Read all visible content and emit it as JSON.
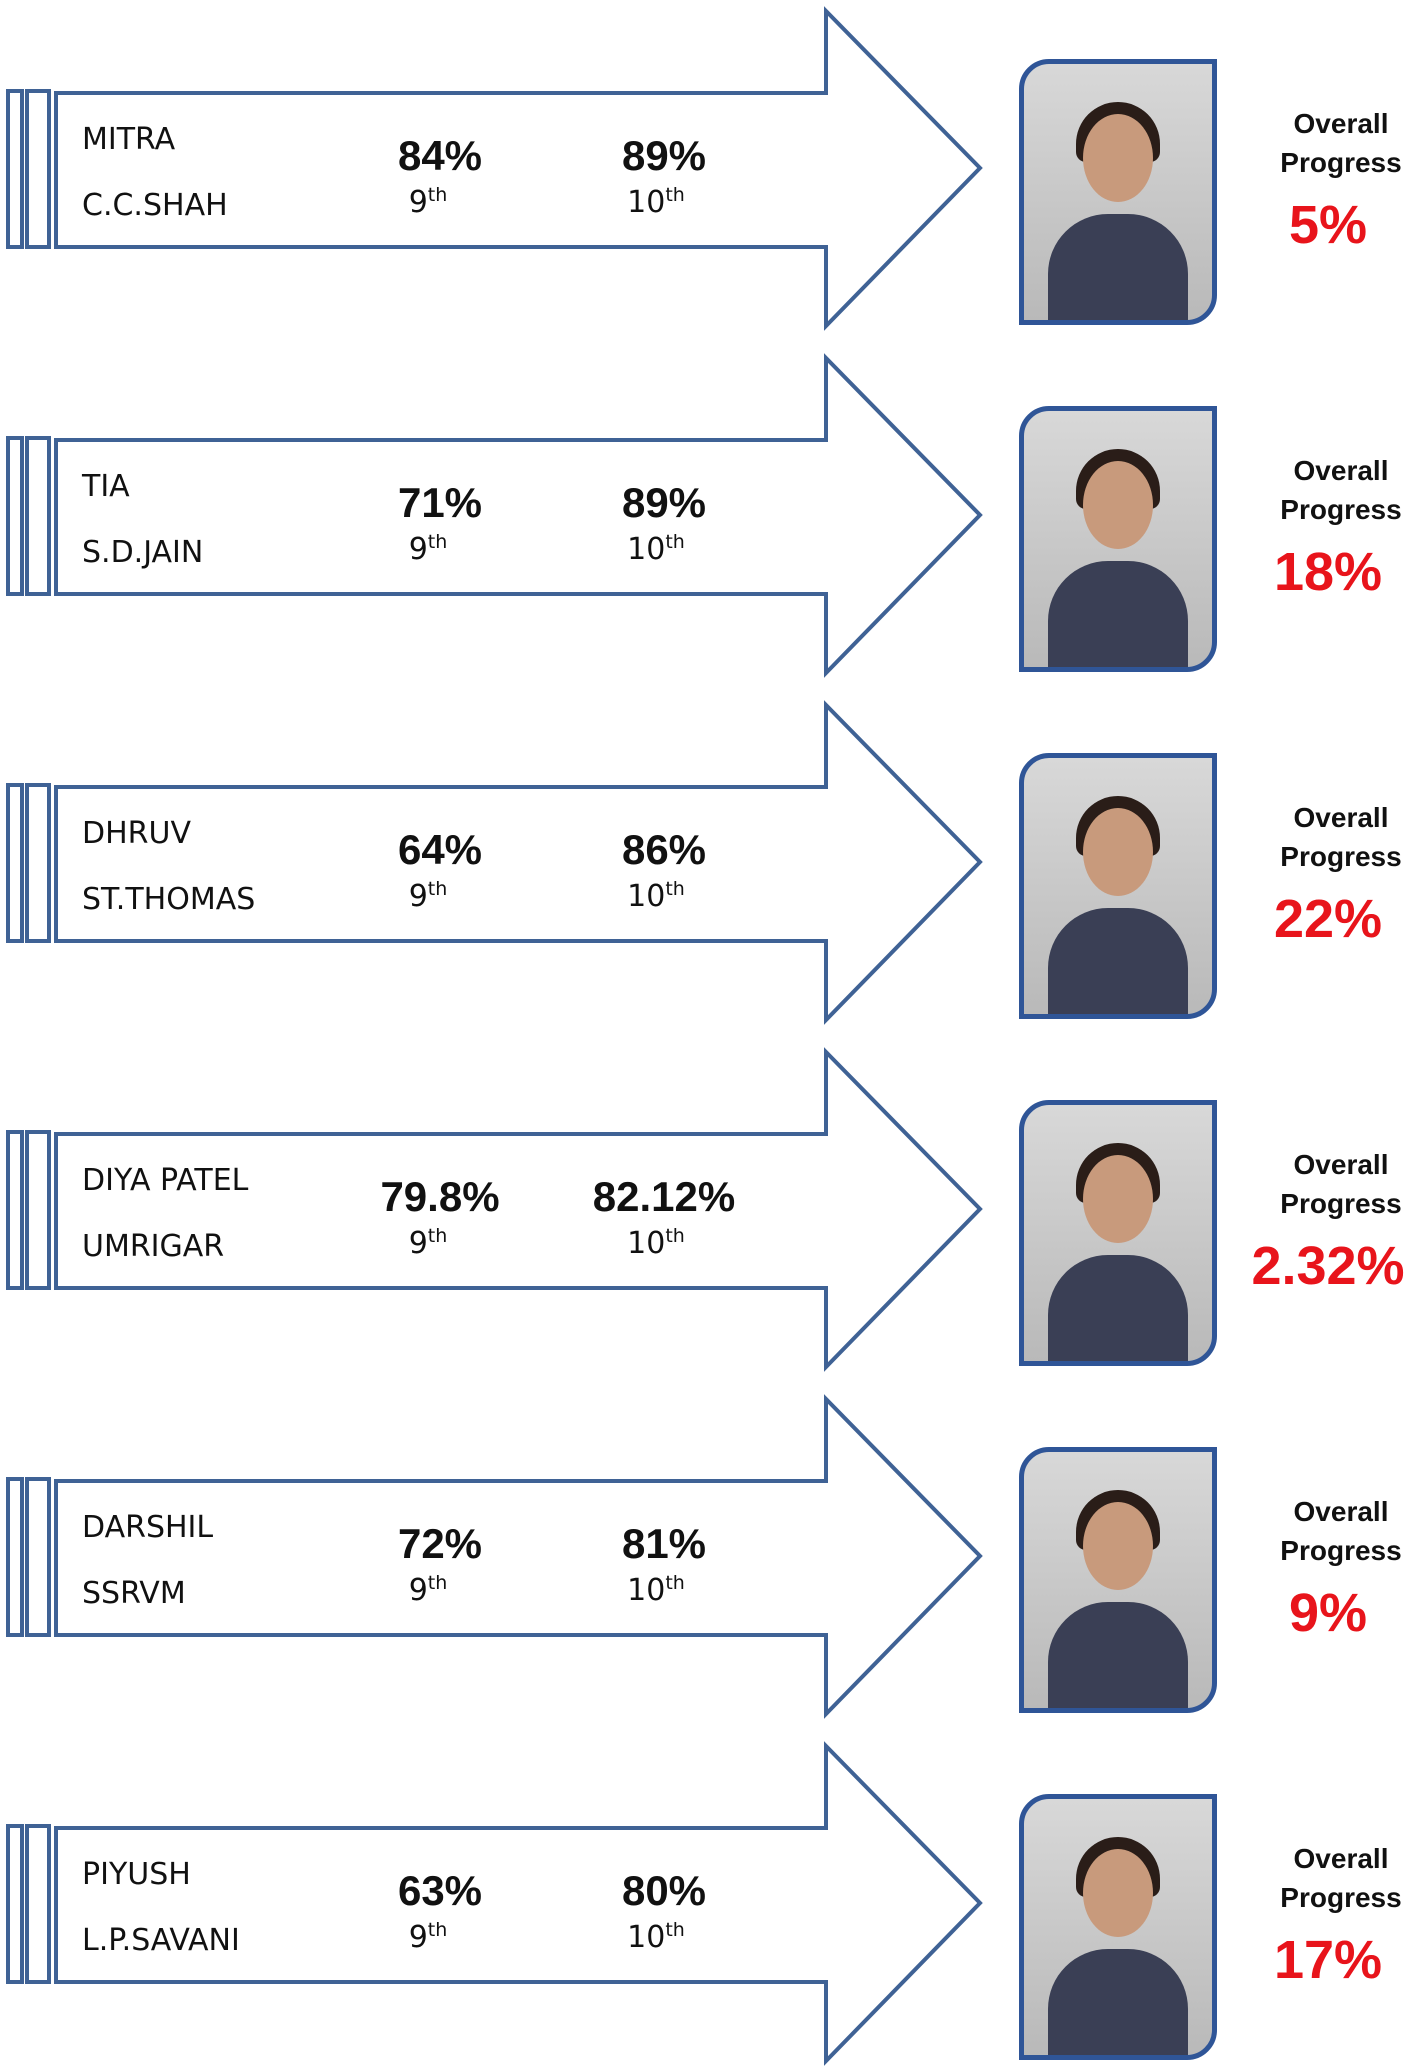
{
  "progress_label": "Overall Progress",
  "grades": [
    {
      "base": "9",
      "sup": "th"
    },
    {
      "base": "10",
      "sup": "th"
    }
  ],
  "students": [
    {
      "name": "MITRA",
      "school": "C.C.SHAH",
      "score_9th": "84%",
      "score_10th": "89%",
      "progress": "5%"
    },
    {
      "name": "TIA",
      "school": "S.D.JAIN",
      "score_9th": "71%",
      "score_10th": "89%",
      "progress": "18%"
    },
    {
      "name": "DHRUV",
      "school": "ST.THOMAS",
      "score_9th": "64%",
      "score_10th": "86%",
      "progress": "22%"
    },
    {
      "name": "DIYA PATEL",
      "school": "UMRIGAR",
      "score_9th": "79.8%",
      "score_10th": "82.12%",
      "progress": "2.32%"
    },
    {
      "name": "DARSHIL",
      "school": "SSRVM",
      "score_9th": "72%",
      "score_10th": "81%",
      "progress": "9%"
    },
    {
      "name": "PIYUSH",
      "school": "L.P.SAVANI",
      "score_9th": "63%",
      "score_10th": "80%",
      "progress": "17%"
    }
  ]
}
